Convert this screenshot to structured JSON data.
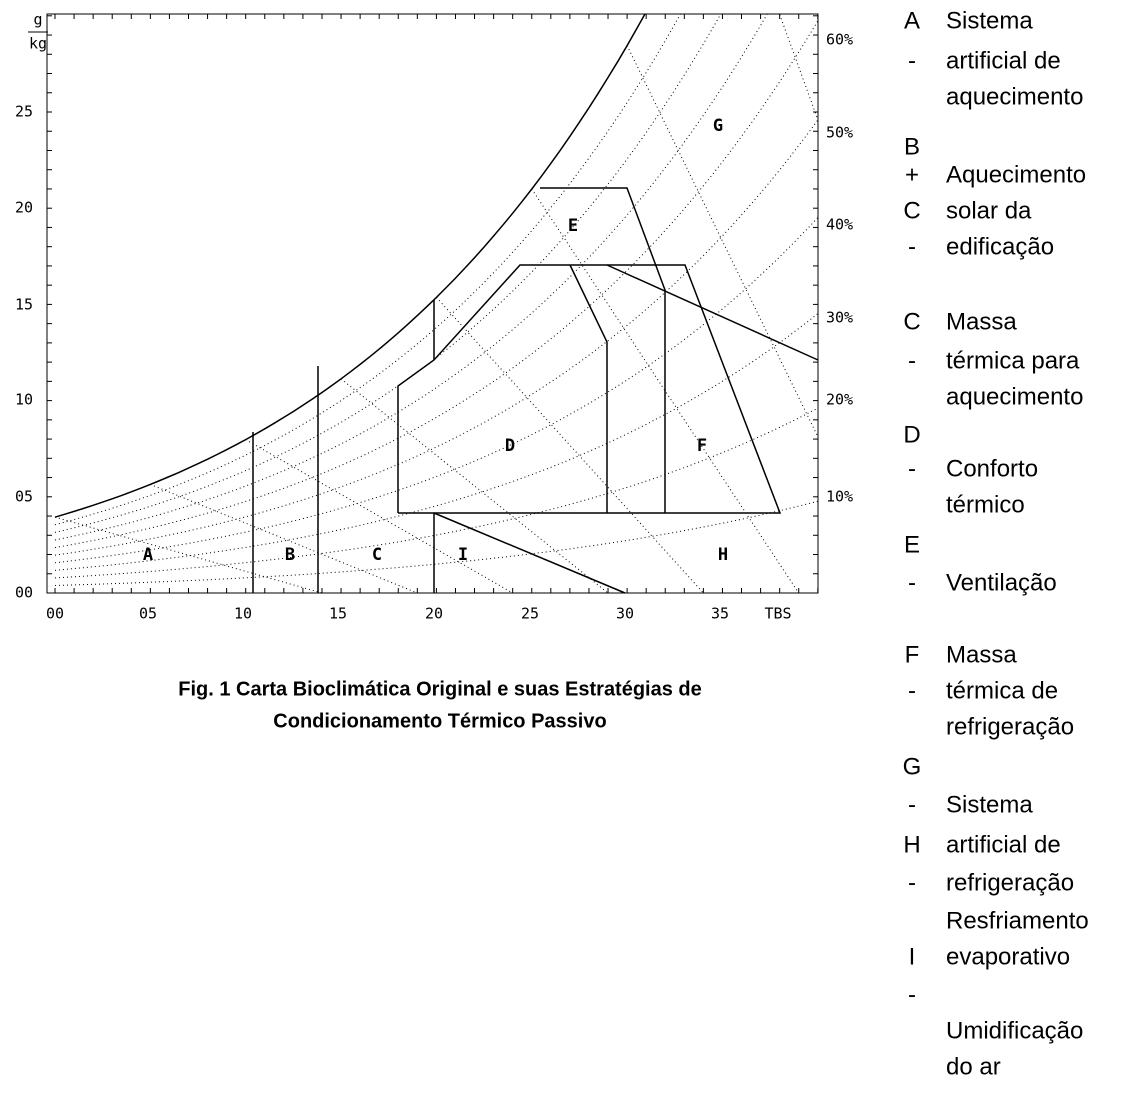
{
  "chart": {
    "unit_top": "g",
    "unit_bottom": "kg",
    "y_labels": [
      "00",
      "05",
      "10",
      "15",
      "20",
      "25"
    ],
    "x_labels": [
      "00",
      "05",
      "10",
      "15",
      "20",
      "25",
      "30",
      "35",
      "TBS"
    ],
    "rh_labels": [
      "10%",
      "20%",
      "30%",
      "40%",
      "50%",
      "60%"
    ],
    "zones": [
      "A",
      "B",
      "C",
      "I",
      "H",
      "D",
      "F",
      "E",
      "G"
    ]
  },
  "legend": {
    "markers": [
      "A",
      "-",
      "B",
      "+",
      "C",
      "-",
      "C",
      "-",
      "D",
      "-",
      "E",
      "-",
      "F",
      "-",
      "G",
      "-",
      "H",
      "-",
      "I",
      "-"
    ],
    "lines": [
      "Sistema",
      "artificial de",
      "aquecimento",
      "Aquecimento",
      "solar da",
      "edificação",
      "Massa",
      "térmica para",
      "aquecimento",
      "Conforto",
      "térmico",
      "Ventilação",
      "Massa",
      "térmica de",
      "refrigeração",
      "Sistema",
      "artificial de",
      "refrigeração",
      "Resfriamento",
      "evaporativo",
      "Umidificação",
      "do ar"
    ]
  },
  "caption": [
    "Fig. 1 Carta Bioclimática Original e suas Estratégias de",
    "Condicionamento Térmico Passivo"
  ]
}
